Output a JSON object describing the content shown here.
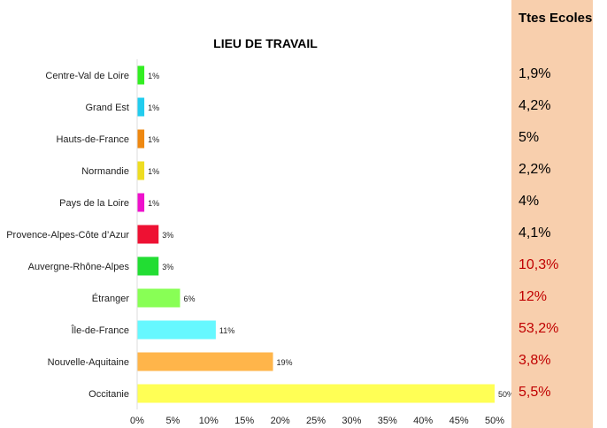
{
  "chart_data": {
    "type": "bar",
    "orientation": "horizontal",
    "title": "LIEU DE TRAVAIL",
    "categories": [
      "Centre-Val de Loire",
      "Grand Est",
      "Hauts-de-France",
      "Normandie",
      "Pays de la Loire",
      "Provence-Alpes-Côte d’Azur",
      "Auvergne-Rhône-Alpes",
      "Étranger",
      "Île-de-France",
      "Nouvelle-Aquitaine",
      "Occitanie"
    ],
    "values": [
      1,
      1,
      1,
      1,
      1,
      3,
      3,
      6,
      11,
      19,
      50
    ],
    "value_labels": [
      "1%",
      "1%",
      "1%",
      "1%",
      "1%",
      "3%",
      "3%",
      "6%",
      "11%",
      "19%",
      "50%"
    ],
    "colors": [
      "#33ee22",
      "#22ccee",
      "#ee8811",
      "#eedd22",
      "#ee11cc",
      "#ee1133",
      "#22dd33",
      "#88ff55",
      "#66f8ff",
      "#ffb54a",
      "#ffff55"
    ],
    "xlim": [
      0,
      50
    ],
    "xticks": [
      "0%",
      "5%",
      "10%",
      "15%",
      "20%",
      "25%",
      "30%",
      "35%",
      "40%",
      "45%",
      "50%"
    ],
    "grid": false,
    "legend": "none"
  },
  "ttes_ecoles": {
    "header": "Ttes Ecoles",
    "values": [
      "1,9%",
      "4,2%",
      "5%",
      "2,2%",
      "4%",
      "4,1%",
      "10,3%",
      "12%",
      "53,2%",
      "3,8%",
      "5,5%"
    ],
    "colors": [
      "#000000",
      "#000000",
      "#000000",
      "#000000",
      "#000000",
      "#000000",
      "#c00000",
      "#c00000",
      "#c00000",
      "#c00000",
      "#c00000"
    ]
  }
}
